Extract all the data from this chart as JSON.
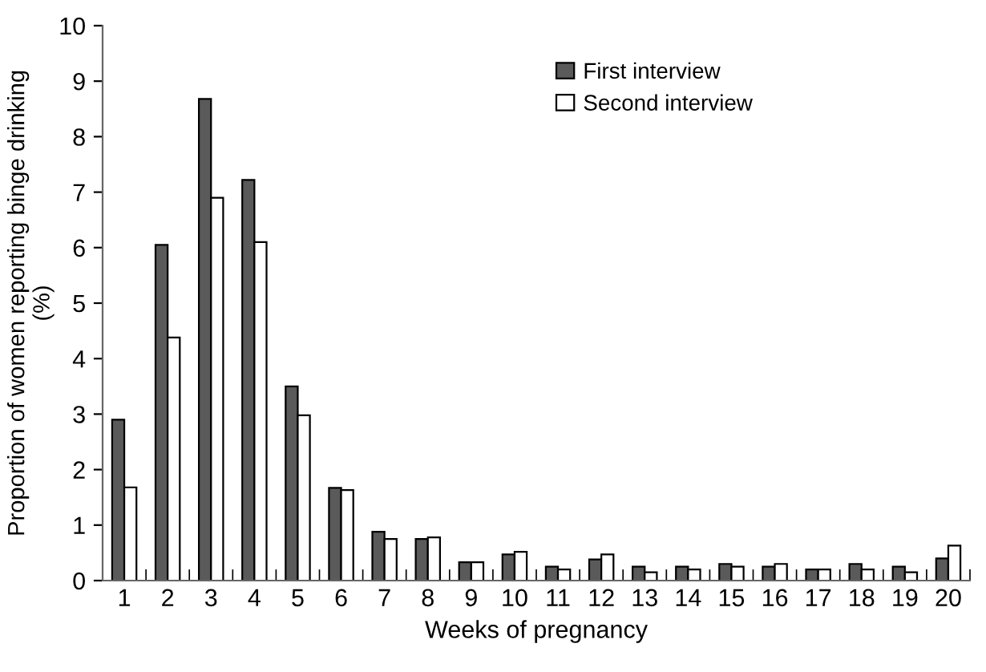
{
  "chart_data": {
    "type": "bar",
    "xlabel": "Weeks of pregnancy",
    "ylabel": "Proportion of women reporting binge drinking\n(%)",
    "categories": [
      "1",
      "2",
      "3",
      "4",
      "5",
      "6",
      "7",
      "8",
      "9",
      "10",
      "11",
      "12",
      "13",
      "14",
      "15",
      "16",
      "17",
      "18",
      "19",
      "20"
    ],
    "series": [
      {
        "name": "First interview",
        "color": "#5a5a5a",
        "values": [
          2.9,
          6.05,
          8.68,
          7.22,
          3.5,
          1.67,
          0.88,
          0.75,
          0.33,
          0.47,
          0.25,
          0.38,
          0.25,
          0.25,
          0.3,
          0.25,
          0.2,
          0.3,
          0.25,
          0.4
        ]
      },
      {
        "name": "Second interview",
        "color": "#ffffff",
        "values": [
          1.68,
          4.38,
          6.9,
          6.1,
          2.98,
          1.63,
          0.75,
          0.78,
          0.33,
          0.52,
          0.2,
          0.47,
          0.15,
          0.2,
          0.25,
          0.3,
          0.2,
          0.2,
          0.15,
          0.63
        ]
      }
    ],
    "ylim": [
      0,
      10
    ],
    "yticks": [
      0,
      1,
      2,
      3,
      4,
      5,
      6,
      7,
      8,
      9,
      10
    ],
    "grid": false,
    "legend": "top right"
  }
}
